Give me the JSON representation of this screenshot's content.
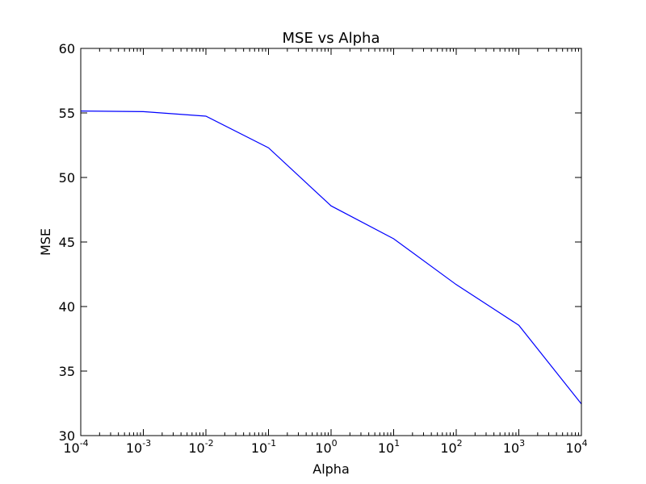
{
  "chart_data": {
    "type": "line",
    "title": "MSE vs Alpha",
    "xlabel": "Alpha",
    "ylabel": "MSE",
    "xscale": "log",
    "xlim": [
      0.0001,
      10000
    ],
    "ylim": [
      30,
      60
    ],
    "grid": false,
    "legend": "none",
    "line_color": "#0000ff",
    "x_ticks": [
      {
        "base": "10",
        "exp": "-4"
      },
      {
        "base": "10",
        "exp": "-3"
      },
      {
        "base": "10",
        "exp": "-2"
      },
      {
        "base": "10",
        "exp": "-1"
      },
      {
        "base": "10",
        "exp": "0"
      },
      {
        "base": "10",
        "exp": "1"
      },
      {
        "base": "10",
        "exp": "2"
      },
      {
        "base": "10",
        "exp": "3"
      },
      {
        "base": "10",
        "exp": "4"
      }
    ],
    "y_ticks": [
      "30",
      "35",
      "40",
      "45",
      "50",
      "55",
      "60"
    ],
    "series": [
      {
        "x": [
          0.0001,
          0.001,
          0.01,
          0.1,
          1,
          10,
          100,
          1000,
          10000
        ],
        "values": [
          55.15,
          55.1,
          54.75,
          52.3,
          47.8,
          45.25,
          41.7,
          38.55,
          32.45
        ]
      }
    ]
  }
}
